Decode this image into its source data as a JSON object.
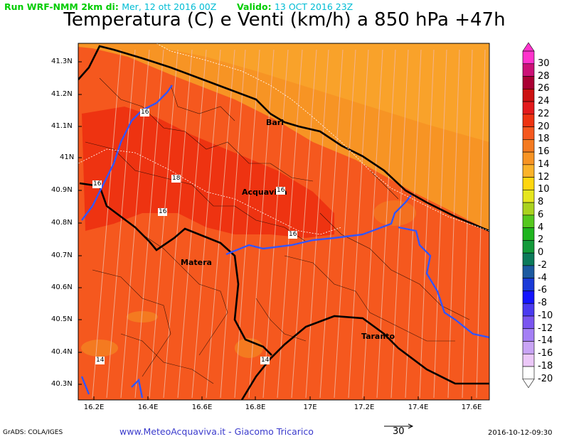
{
  "header": {
    "run_label": "Run WRF-NMM 2km di:",
    "run_date": "Mer, 12 ott 2016 00Z",
    "valid_label": "Valido:",
    "valid_date": "13 OCT 2016 23Z",
    "title": "Temperatura (C) e Venti (km/h) a 850 hPa +47h"
  },
  "y_axis": {
    "ticks": [
      "41.3N",
      "41.2N",
      "41.1N",
      "41N",
      "40.9N",
      "40.8N",
      "40.7N",
      "40.6N",
      "40.5N",
      "40.4N",
      "40.3N"
    ]
  },
  "x_axis": {
    "ticks": [
      "16.2E",
      "16.4E",
      "16.6E",
      "16.8E",
      "17E",
      "17.2E",
      "17.4E",
      "17.6E"
    ]
  },
  "colorbar": {
    "labels": [
      "30",
      "28",
      "26",
      "24",
      "22",
      "20",
      "18",
      "16",
      "14",
      "12",
      "10",
      "8",
      "6",
      "4",
      "2",
      "0",
      "-2",
      "-4",
      "-6",
      "-8",
      "-10",
      "-12",
      "-14",
      "-16",
      "-18",
      "-20"
    ],
    "colors": [
      "#ff33cc",
      "#cc1177",
      "#aa0033",
      "#cc1111",
      "#e31a1c",
      "#ee3311",
      "#f5581e",
      "#f47a20",
      "#f79424",
      "#fbb32a",
      "#ffd60f",
      "#e6e61e",
      "#aad21e",
      "#55c81e",
      "#1eb41e",
      "#139a3a",
      "#0c7a5a",
      "#1c5aa0",
      "#1a3ad8",
      "#1414ff",
      "#4a3af0",
      "#7a55f0",
      "#a47ff5",
      "#c9a4f5",
      "#ecc8f8",
      "#ffffff"
    ]
  },
  "map": {
    "cities": [
      "Bari",
      "Acquaviva",
      "Matera",
      "Taranto"
    ],
    "contour_labels": [
      "16",
      "18",
      "16",
      "16",
      "16",
      "16",
      "14",
      "14"
    ]
  },
  "footer": {
    "left": "GrADS: COLA/IGES",
    "web": "www.MeteoAcquaviva.it  -  Giacomo Tricarico",
    "ref_vector": "30",
    "date": "2016-10-12-09:30"
  }
}
